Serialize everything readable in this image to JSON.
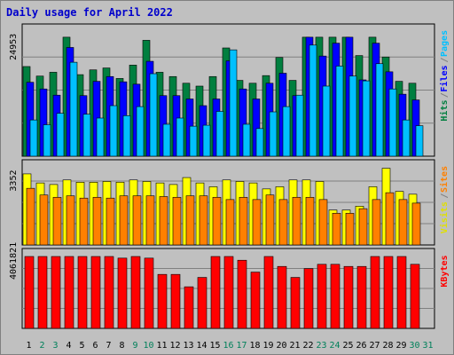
{
  "chart_data": [
    {
      "type": "bar",
      "title": "Daily usage for April 2022",
      "x": [
        "1",
        "2",
        "3",
        "4",
        "5",
        "6",
        "7",
        "8",
        "9",
        "10",
        "11",
        "12",
        "13",
        "14",
        "15",
        "16",
        "17",
        "18",
        "19",
        "20",
        "21",
        "22",
        "23",
        "24",
        "25",
        "26",
        "27",
        "28",
        "29",
        "30",
        "31"
      ],
      "weekend_days": [
        "2",
        "3",
        "9",
        "10",
        "16",
        "17",
        "23",
        "24",
        "30",
        "31"
      ],
      "ytick": "24953",
      "ymax": 24953,
      "series": [
        {
          "name": "Hits",
          "color": "#007f3f",
          "values": [
            18800,
            16800,
            17600,
            26600,
            17100,
            18100,
            18500,
            16300,
            19100,
            24300,
            17600,
            16700,
            15300,
            14700,
            16700,
            22700,
            15900,
            15300,
            16900,
            20700,
            15900,
            29800,
            26800,
            26800,
            26800,
            21100,
            26700,
            20800,
            15700,
            15300,
            null
          ]
        },
        {
          "name": "Files",
          "color": "#0000ff",
          "values": [
            15500,
            14100,
            12800,
            22800,
            12700,
            15700,
            16700,
            15600,
            15100,
            19900,
            12700,
            12700,
            12000,
            10600,
            12000,
            20000,
            14100,
            12000,
            15300,
            17400,
            12700,
            25500,
            21000,
            23700,
            25500,
            16000,
            23700,
            17700,
            13000,
            11800,
            null
          ]
        },
        {
          "name": "Pages",
          "color": "#00c0ff",
          "values": [
            7600,
            6600,
            9000,
            19700,
            8800,
            8000,
            10600,
            8500,
            10400,
            17300,
            6700,
            8000,
            6300,
            6500,
            9400,
            22300,
            6700,
            5800,
            9300,
            10400,
            12800,
            23300,
            14700,
            18900,
            16800,
            15800,
            19400,
            14100,
            7600,
            6400,
            null
          ]
        }
      ]
    },
    {
      "type": "bar",
      "ytick": "3352",
      "ymax": 3352,
      "series": [
        {
          "name": "Visits",
          "color": "#ffff00",
          "values": [
            3107,
            2710,
            2642,
            2842,
            2742,
            2742,
            2776,
            2744,
            2842,
            2776,
            2710,
            2642,
            2946,
            2710,
            2544,
            2842,
            2776,
            2710,
            2450,
            2544,
            2842,
            2842,
            2776,
            1528,
            1528,
            1694,
            2546,
            4153,
            2342,
            2218,
            null
          ]
        },
        {
          "name": "Sites",
          "color": "#ff8000",
          "values": [
            2476,
            2184,
            2084,
            2148,
            2048,
            2084,
            2048,
            2148,
            2148,
            2148,
            2116,
            2084,
            2148,
            2148,
            2084,
            1984,
            2084,
            1984,
            2184,
            1984,
            2084,
            2084,
            1984,
            1386,
            1386,
            1586,
            1984,
            2284,
            1984,
            1828,
            null
          ]
        }
      ]
    },
    {
      "type": "bar",
      "ytick": "4061821",
      "ymax": 4061821,
      "series": [
        {
          "name": "KBytes",
          "color": "#ff0000",
          "values": [
            5930000,
            4780000,
            4660000,
            4660000,
            4200000,
            5500000,
            4250000,
            3970000,
            4200000,
            3970000,
            3050000,
            3050000,
            2350000,
            2880000,
            4780000,
            4080000,
            3850000,
            3180000,
            4140000,
            3500000,
            2880000,
            3380000,
            3620000,
            3620000,
            3500000,
            3500000,
            5030000,
            4780000,
            4080000,
            3620000,
            null
          ]
        }
      ]
    }
  ],
  "top_axis_labels": [
    {
      "text": "Hits",
      "color": "#007f3f"
    },
    {
      "text": "/",
      "color": "#808080"
    },
    {
      "text": "Files",
      "color": "#0000ff"
    },
    {
      "text": "/",
      "color": "#808080"
    },
    {
      "text": "Pages",
      "color": "#00c0ff"
    }
  ],
  "mid_axis_labels": [
    {
      "text": "Visits",
      "color": "#e0e000"
    },
    {
      "text": "/",
      "color": "#808080"
    },
    {
      "text": "Sites",
      "color": "#ff8000"
    }
  ],
  "bot_axis_labels": [
    {
      "text": "KBytes",
      "color": "#ff0000"
    }
  ],
  "colors": {
    "background": "#c0c0c0",
    "plot_bg": "#c0c0c0",
    "grid": "#808080",
    "title": "#0000cc",
    "weekday_label": "#000000",
    "weekend_label": "#00805a"
  }
}
